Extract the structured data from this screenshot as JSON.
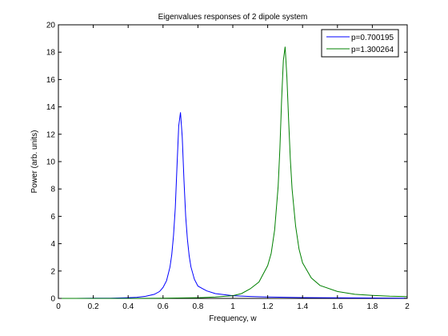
{
  "chart_data": {
    "type": "line",
    "title": "Eigenvalues responses of 2 dipole system",
    "xlabel": "Frequency, w",
    "ylabel": "Power (arb. units)",
    "xlim": [
      0,
      2
    ],
    "ylim": [
      0,
      20
    ],
    "xticks": [
      "0",
      "0.2",
      "0.4",
      "0.6",
      "0.8",
      "1",
      "1.2",
      "1.4",
      "1.6",
      "1.8",
      "2"
    ],
    "yticks": [
      "0",
      "2",
      "4",
      "6",
      "8",
      "10",
      "12",
      "14",
      "16",
      "18",
      "20"
    ],
    "grid": false,
    "legend_position": "top-right",
    "series": [
      {
        "name": "p=0.700195",
        "color": "#0000ff",
        "peak_x": 0.700195,
        "peak_y": 13.6,
        "x": [
          0,
          0.1,
          0.2,
          0.3,
          0.4,
          0.45,
          0.5,
          0.55,
          0.58,
          0.6,
          0.62,
          0.64,
          0.65,
          0.66,
          0.67,
          0.68,
          0.69,
          0.7,
          0.71,
          0.72,
          0.73,
          0.74,
          0.75,
          0.76,
          0.78,
          0.8,
          0.85,
          0.9,
          1.0,
          1.1,
          1.2,
          1.3,
          1.4,
          1.5,
          1.6,
          1.8,
          2.0
        ],
        "y": [
          0.0,
          0.0,
          0.01,
          0.02,
          0.05,
          0.08,
          0.15,
          0.3,
          0.5,
          0.8,
          1.3,
          2.3,
          3.2,
          4.6,
          6.6,
          9.6,
          12.6,
          13.6,
          11.8,
          8.6,
          6.0,
          4.3,
          3.1,
          2.3,
          1.4,
          0.9,
          0.55,
          0.35,
          0.2,
          0.14,
          0.1,
          0.08,
          0.06,
          0.05,
          0.04,
          0.03,
          0.02
        ]
      },
      {
        "name": "p=1.300264",
        "color": "#008000",
        "peak_x": 1.300264,
        "peak_y": 18.4,
        "x": [
          0,
          0.2,
          0.4,
          0.6,
          0.8,
          0.9,
          1.0,
          1.05,
          1.1,
          1.15,
          1.2,
          1.22,
          1.24,
          1.26,
          1.27,
          1.28,
          1.29,
          1.3,
          1.31,
          1.32,
          1.33,
          1.34,
          1.36,
          1.38,
          1.4,
          1.45,
          1.5,
          1.6,
          1.7,
          1.8,
          1.9,
          2.0
        ],
        "y": [
          0.0,
          0.0,
          0.0,
          0.01,
          0.05,
          0.1,
          0.2,
          0.35,
          0.7,
          1.2,
          2.4,
          3.3,
          5.0,
          8.2,
          11.0,
          14.5,
          17.4,
          18.4,
          16.2,
          13.0,
          10.2,
          8.0,
          5.3,
          3.6,
          2.6,
          1.5,
          0.95,
          0.5,
          0.3,
          0.22,
          0.16,
          0.13
        ]
      }
    ]
  }
}
